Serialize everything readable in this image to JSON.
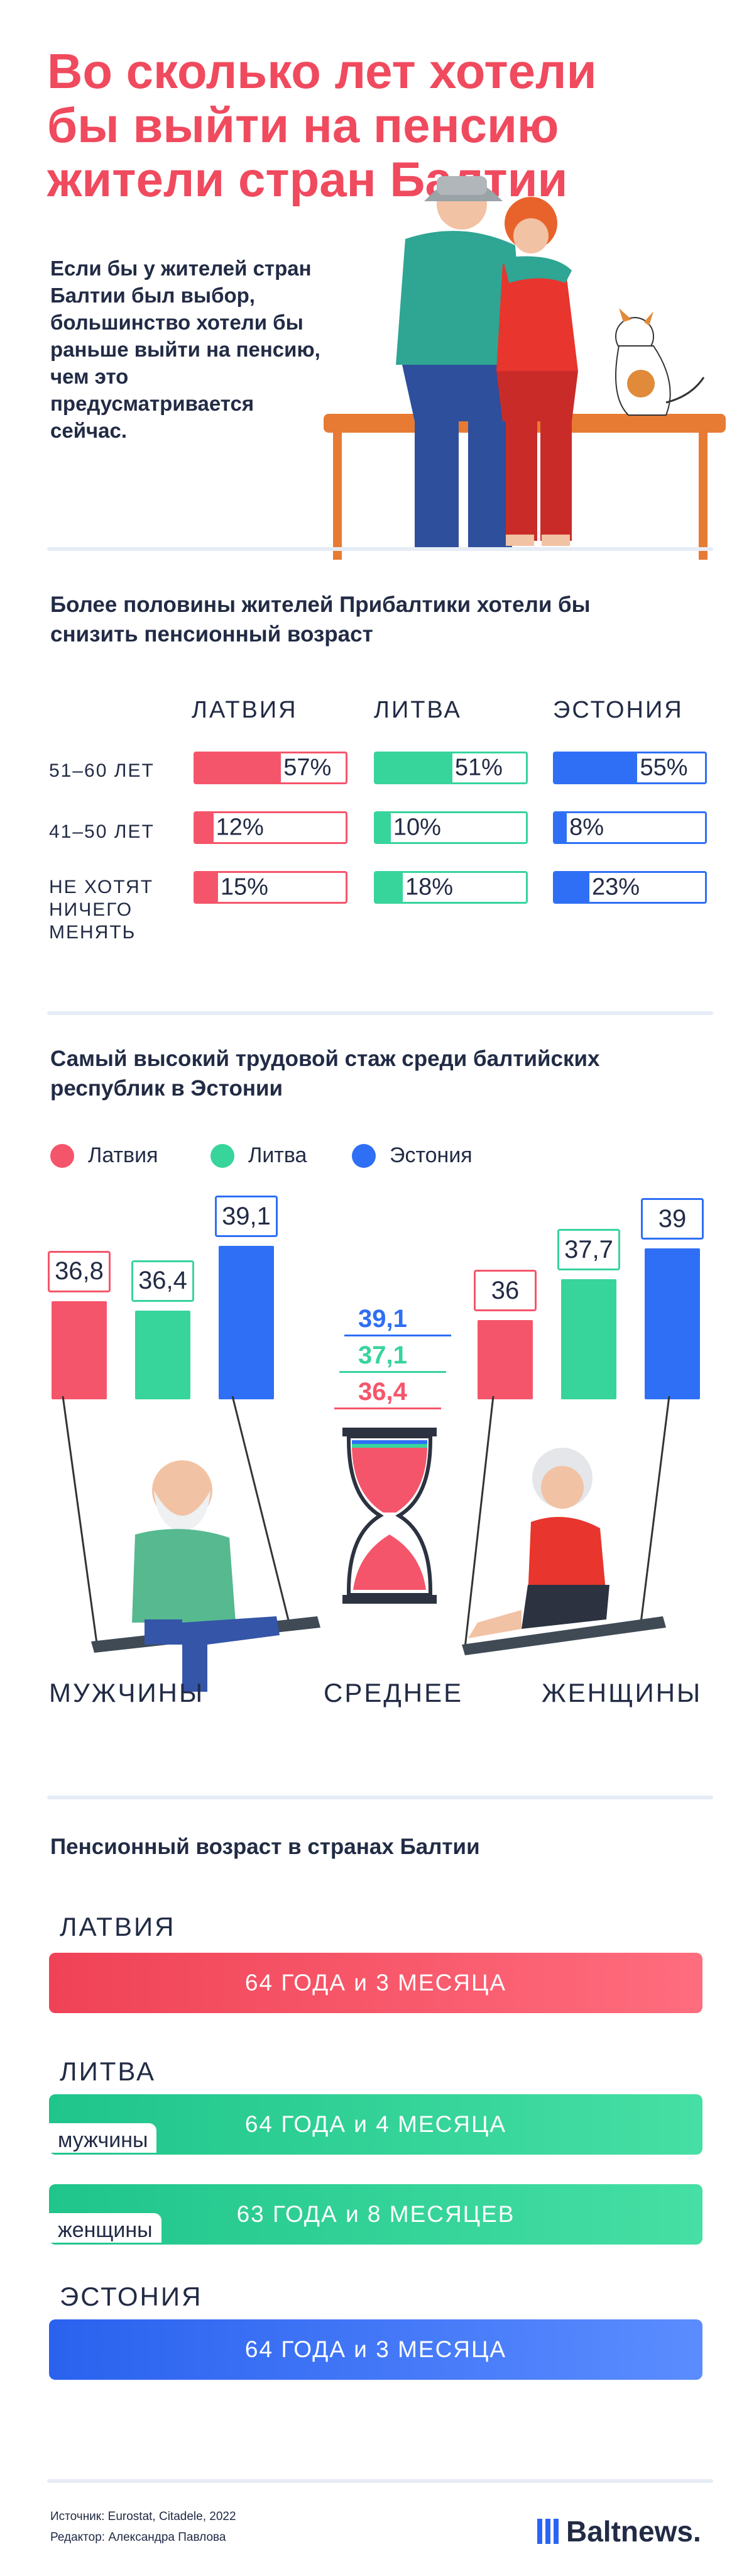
{
  "title": "Во сколько лет хотели бы выйти на пенсию жители стран Балтии",
  "intro": "Если бы у жителей стран Балтии был выбор, большинство хотели бы раньше выйти на пенсию, чем это предусматривается сейчас.",
  "colors": {
    "latvia": "#f5556a",
    "lithuania": "#37d49c",
    "estonia": "#2e6ff5",
    "accent": "#f04a5e"
  },
  "section1": {
    "title": "Более половины жителей Прибалтики хотели бы снизить пенсионный возраст",
    "columns": [
      "ЛАТВИЯ",
      "ЛИТВА",
      "ЭСТОНИЯ"
    ],
    "rows": [
      {
        "label": "51–60 ЛЕТ",
        "values": [
          "57%",
          "51%",
          "55%"
        ]
      },
      {
        "label": "41–50 ЛЕТ",
        "values": [
          "12%",
          "10%",
          "8%"
        ]
      },
      {
        "label": "НЕ ХОТЯТ НИЧЕГО МЕНЯТЬ",
        "values": [
          "15%",
          "18%",
          "23%"
        ]
      }
    ]
  },
  "section2": {
    "title": "Самый высокий трудовой стаж среди балтийских республик в Эстонии",
    "legend": [
      "Латвия",
      "Литва",
      "Эстония"
    ],
    "groups": [
      "МУЖЧИНЫ",
      "СРЕДНЕЕ",
      "ЖЕНЩИНЫ"
    ]
  },
  "chart_data": {
    "type": "bar",
    "title": "Самый высокий трудовой стаж среди балтийских республик в Эстонии",
    "categories": [
      "МУЖЧИНЫ",
      "СРЕДНЕЕ",
      "ЖЕНЩИНЫ"
    ],
    "series": [
      {
        "name": "Латвия",
        "values": [
          36.8,
          36.4,
          36
        ],
        "labels": [
          "36,8",
          "36,4",
          "36"
        ]
      },
      {
        "name": "Литва",
        "values": [
          36.4,
          37.1,
          37.7
        ],
        "labels": [
          "36,4",
          "37,1",
          "37,7"
        ]
      },
      {
        "name": "Эстония",
        "values": [
          39.1,
          39.1,
          39
        ],
        "labels": [
          "39,1",
          "39,1",
          "39"
        ]
      }
    ],
    "legend": "top-left"
  },
  "section3": {
    "title": "Пенсионный возраст в странах Балтии",
    "latvia": {
      "name": "ЛАТВИЯ",
      "value": "64 ГОДА и 3 МЕСЯЦА"
    },
    "lithuania": {
      "name": "ЛИТВА",
      "men_label": "мужчины",
      "men_value": "64 ГОДА и 4 МЕСЯЦА",
      "women_label": "женщины",
      "women_value": "63 ГОДА и 8 МЕСЯЦЕВ"
    },
    "estonia": {
      "name": "ЭСТОНИЯ",
      "value": "64 ГОДА и 3 МЕСЯЦА"
    }
  },
  "footer": {
    "sources": "Источник: Eurostat, Citadele, 2022",
    "editor": "Редактор: Александра Павлова",
    "logo": "Baltnews."
  }
}
